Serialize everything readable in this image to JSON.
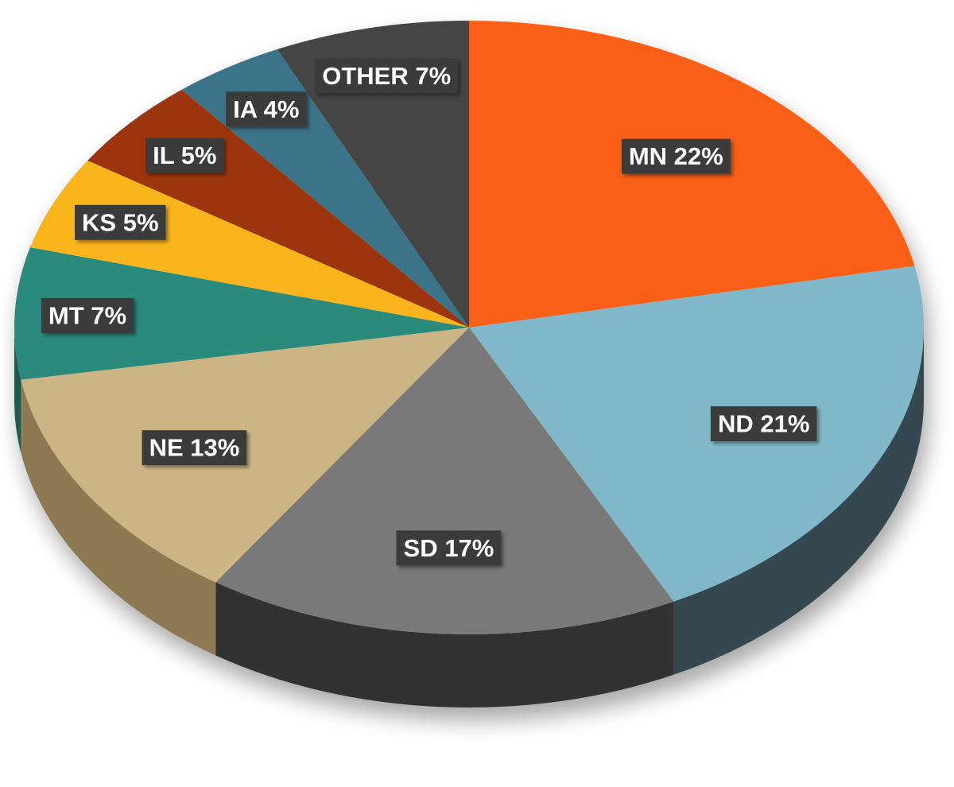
{
  "chart_data": {
    "type": "pie",
    "style": "3d",
    "title": "",
    "legend": "none",
    "slices": [
      {
        "name": "MN",
        "value": 22,
        "label": "MN 22%",
        "color": "#f95e12",
        "side_color": "#a83d0a"
      },
      {
        "name": "ND",
        "value": 21,
        "label": "ND 21%",
        "color": "#80b8c9",
        "side_color": "#34474f"
      },
      {
        "name": "SD",
        "value": 17,
        "label": "SD 17%",
        "color": "#797979",
        "side_color": "#303030"
      },
      {
        "name": "NE",
        "value": 13,
        "label": "NE 13%",
        "color": "#cbb584",
        "side_color": "#8d7a52"
      },
      {
        "name": "MT",
        "value": 7,
        "label": "MT 7%",
        "color": "#2c8a7b",
        "side_color": "#1c5a50"
      },
      {
        "name": "KS",
        "value": 5,
        "label": "KS 5%",
        "color": "#fab51c",
        "side_color": "#a8780f"
      },
      {
        "name": "IL",
        "value": 5,
        "label": "IL 5%",
        "color": "#9c3608",
        "side_color": "#5e2005"
      },
      {
        "name": "IA",
        "value": 4,
        "label": "IA 4%",
        "color": "#3b7389",
        "side_color": "#244858"
      },
      {
        "name": "OTHER",
        "value": 7,
        "label": "OTHER 7%",
        "color": "#444444",
        "side_color": "#2a2a2a"
      }
    ]
  }
}
